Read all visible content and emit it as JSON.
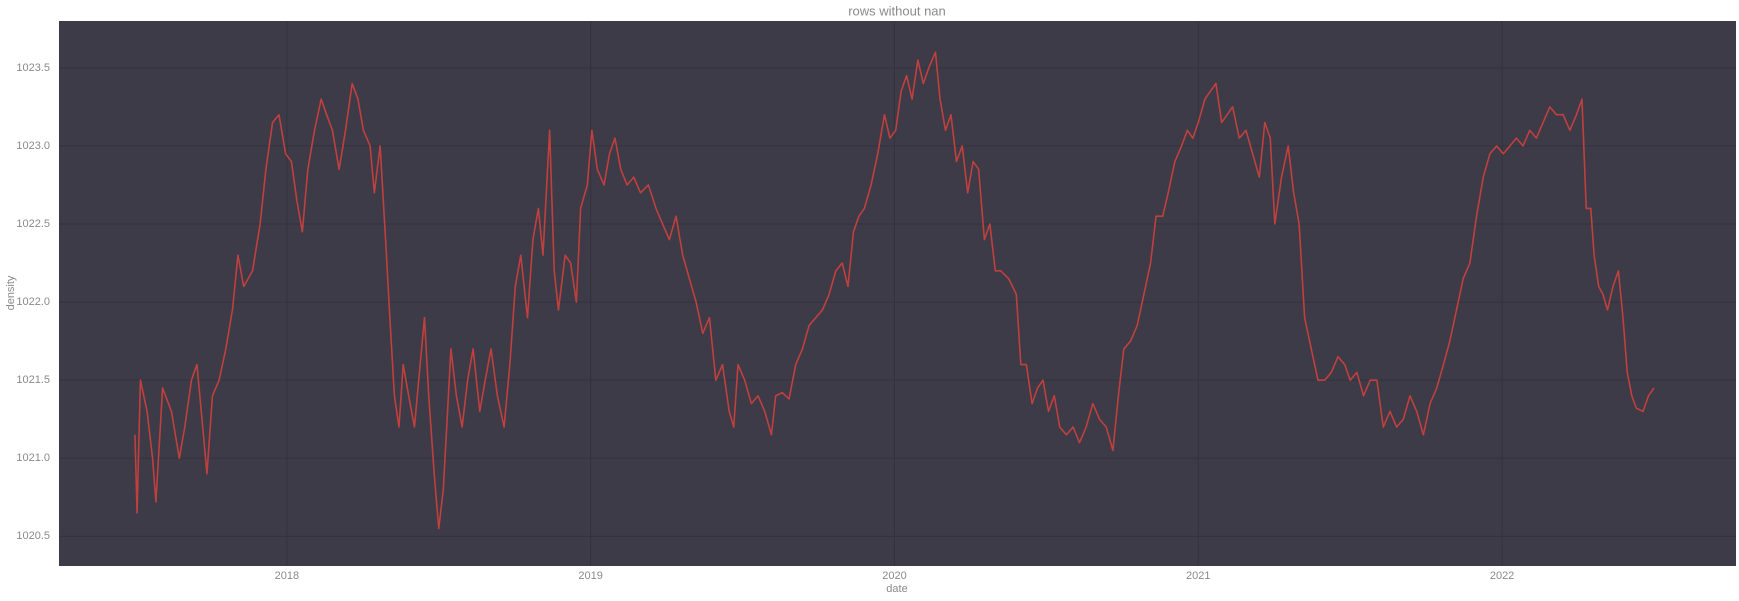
{
  "chart_data": {
    "type": "line",
    "title": "rows without nan",
    "xlabel": "date",
    "ylabel": "density",
    "xlim": [
      2017.25,
      2022.77
    ],
    "xticks": [
      2018,
      2019,
      2020,
      2021,
      2022
    ],
    "ylim": [
      1020.31,
      1023.8
    ],
    "yticks": [
      1020.5,
      {
        "value": 1021,
        "label": "1021.0"
      },
      1021.5,
      {
        "value": 1022,
        "label": "1022.0"
      },
      1022.5,
      {
        "value": 1023,
        "label": "1023.0"
      },
      1023.5
    ],
    "grid": true,
    "x": [
      2017.5,
      2017.507,
      2017.518,
      2017.54,
      2017.558,
      2017.569,
      2017.591,
      2017.62,
      2017.646,
      2017.664,
      2017.686,
      2017.704,
      2017.723,
      2017.737,
      2017.755,
      2017.777,
      2017.799,
      2017.821,
      2017.839,
      2017.858,
      2017.887,
      2017.912,
      2017.931,
      2017.953,
      2017.974,
      2017.996,
      2018.015,
      2018.033,
      2018.051,
      2018.069,
      2018.091,
      2018.113,
      2018.131,
      2018.15,
      2018.172,
      2018.193,
      2018.215,
      2018.234,
      2018.252,
      2018.274,
      2018.288,
      2018.307,
      2018.325,
      2018.339,
      2018.354,
      2018.369,
      2018.383,
      2018.401,
      2018.42,
      2018.434,
      2018.453,
      2018.467,
      2018.485,
      2018.5,
      2018.515,
      2018.529,
      2018.54,
      2018.558,
      2018.577,
      2018.595,
      2018.613,
      2018.635,
      2018.653,
      2018.672,
      2018.693,
      2018.715,
      2018.734,
      2018.752,
      2018.77,
      2018.792,
      2018.81,
      2018.828,
      2018.843,
      2018.865,
      2018.88,
      2018.894,
      2018.916,
      2018.934,
      2018.953,
      2018.967,
      2018.989,
      2019.004,
      2019.022,
      2019.044,
      2019.062,
      2019.08,
      2019.099,
      2019.12,
      2019.142,
      2019.164,
      2019.19,
      2019.215,
      2019.237,
      2019.259,
      2019.281,
      2019.303,
      2019.325,
      2019.347,
      2019.369,
      2019.391,
      2019.412,
      2019.434,
      2019.456,
      2019.471,
      2019.485,
      2019.507,
      2019.529,
      2019.551,
      2019.573,
      2019.595,
      2019.609,
      2019.631,
      2019.653,
      2019.675,
      2019.697,
      2019.719,
      2019.741,
      2019.763,
      2019.785,
      2019.807,
      2019.828,
      2019.847,
      2019.865,
      2019.883,
      2019.901,
      2019.923,
      2019.945,
      2019.967,
      2019.985,
      2020.004,
      2020.022,
      2020.04,
      2020.058,
      2020.077,
      2020.095,
      2020.113,
      2020.135,
      2020.15,
      2020.168,
      2020.186,
      2020.204,
      2020.223,
      2020.241,
      2020.259,
      2020.277,
      2020.296,
      2020.314,
      2020.332,
      2020.35,
      2020.376,
      2020.401,
      2020.416,
      2020.434,
      2020.453,
      2020.471,
      2020.489,
      2020.507,
      2020.526,
      2020.544,
      2020.566,
      2020.588,
      2020.609,
      2020.631,
      2020.653,
      2020.675,
      2020.697,
      2020.719,
      2020.737,
      2020.755,
      2020.777,
      2020.799,
      2020.821,
      2020.843,
      2020.861,
      2020.883,
      2020.901,
      2020.923,
      2020.945,
      2020.964,
      2020.982,
      2021.0,
      2021.022,
      2021.04,
      2021.058,
      2021.077,
      2021.095,
      2021.113,
      2021.135,
      2021.157,
      2021.179,
      2021.201,
      2021.219,
      2021.237,
      2021.252,
      2021.274,
      2021.296,
      2021.314,
      2021.332,
      2021.35,
      2021.372,
      2021.394,
      2021.416,
      2021.438,
      2021.46,
      2021.482,
      2021.5,
      2021.522,
      2021.544,
      2021.566,
      2021.588,
      2021.609,
      2021.631,
      2021.653,
      2021.675,
      2021.697,
      2021.719,
      2021.741,
      2021.763,
      2021.785,
      2021.807,
      2021.828,
      2021.85,
      2021.872,
      2021.894,
      2021.916,
      2021.938,
      2021.96,
      2021.982,
      2022.004,
      2022.026,
      2022.047,
      2022.069,
      2022.091,
      2022.113,
      2022.135,
      2022.157,
      2022.179,
      2022.201,
      2022.223,
      2022.245,
      2022.263,
      2022.277,
      2022.292,
      2022.303,
      2022.318,
      2022.332,
      2022.347,
      2022.365,
      2022.383,
      2022.398,
      2022.412,
      2022.427,
      2022.442,
      2022.464,
      2022.482,
      2022.5
    ],
    "series": [
      {
        "name": "density",
        "color": "#c0403e",
        "values": [
          1021.15,
          1020.65,
          1021.5,
          1021.3,
          1021.0,
          1020.72,
          1021.45,
          1021.3,
          1021.0,
          1021.2,
          1021.5,
          1021.6,
          1021.2,
          1020.9,
          1021.4,
          1021.5,
          1021.7,
          1021.95,
          1022.3,
          1022.1,
          1022.2,
          1022.5,
          1022.85,
          1023.15,
          1023.2,
          1022.95,
          1022.9,
          1022.65,
          1022.45,
          1022.85,
          1023.1,
          1023.3,
          1023.2,
          1023.1,
          1022.85,
          1023.1,
          1023.4,
          1023.3,
          1023.1,
          1023.0,
          1022.7,
          1023.0,
          1022.4,
          1021.9,
          1021.4,
          1021.2,
          1021.6,
          1021.4,
          1021.2,
          1021.5,
          1021.9,
          1021.4,
          1020.9,
          1020.55,
          1020.8,
          1021.3,
          1021.7,
          1021.4,
          1021.2,
          1021.5,
          1021.7,
          1021.3,
          1021.5,
          1021.7,
          1021.4,
          1021.2,
          1021.6,
          1022.1,
          1022.3,
          1021.9,
          1022.4,
          1022.6,
          1022.3,
          1023.1,
          1022.2,
          1021.95,
          1022.3,
          1022.25,
          1022.0,
          1022.6,
          1022.75,
          1023.1,
          1022.85,
          1022.75,
          1022.95,
          1023.05,
          1022.85,
          1022.75,
          1022.8,
          1022.7,
          1022.75,
          1022.6,
          1022.5,
          1022.4,
          1022.55,
          1022.3,
          1022.15,
          1022.0,
          1021.8,
          1021.9,
          1021.5,
          1021.6,
          1021.3,
          1021.2,
          1021.6,
          1021.5,
          1021.35,
          1021.4,
          1021.3,
          1021.15,
          1021.4,
          1021.42,
          1021.38,
          1021.6,
          1021.7,
          1021.85,
          1021.9,
          1021.95,
          1022.05,
          1022.2,
          1022.25,
          1022.1,
          1022.45,
          1022.55,
          1022.6,
          1022.75,
          1022.95,
          1023.2,
          1023.05,
          1023.1,
          1023.35,
          1023.45,
          1023.3,
          1023.55,
          1023.4,
          1023.5,
          1023.6,
          1023.3,
          1023.1,
          1023.2,
          1022.9,
          1023.0,
          1022.7,
          1022.9,
          1022.85,
          1022.4,
          1022.5,
          1022.2,
          1022.2,
          1022.15,
          1022.05,
          1021.6,
          1021.6,
          1021.35,
          1021.45,
          1021.5,
          1021.3,
          1021.4,
          1021.2,
          1021.15,
          1021.2,
          1021.1,
          1021.2,
          1021.35,
          1021.25,
          1021.2,
          1021.05,
          1021.4,
          1021.7,
          1021.75,
          1021.85,
          1022.05,
          1022.25,
          1022.55,
          1022.55,
          1022.7,
          1022.9,
          1023.0,
          1023.1,
          1023.05,
          1023.15,
          1023.3,
          1023.35,
          1023.4,
          1023.15,
          1023.2,
          1023.25,
          1023.05,
          1023.1,
          1022.95,
          1022.8,
          1023.15,
          1023.05,
          1022.5,
          1022.8,
          1023.0,
          1022.7,
          1022.5,
          1021.9,
          1021.7,
          1021.5,
          1021.5,
          1021.55,
          1021.65,
          1021.6,
          1021.5,
          1021.55,
          1021.4,
          1021.5,
          1021.5,
          1021.2,
          1021.3,
          1021.2,
          1021.25,
          1021.4,
          1021.3,
          1021.15,
          1021.35,
          1021.45,
          1021.6,
          1021.75,
          1021.95,
          1022.15,
          1022.25,
          1022.55,
          1022.8,
          1022.95,
          1023.0,
          1022.95,
          1023.0,
          1023.05,
          1023.0,
          1023.1,
          1023.05,
          1023.15,
          1023.25,
          1023.2,
          1023.2,
          1023.1,
          1023.2,
          1023.3,
          1022.6,
          1022.6,
          1022.3,
          1022.1,
          1022.05,
          1021.95,
          1022.1,
          1022.2,
          1021.9,
          1021.55,
          1021.4,
          1021.32,
          1021.3,
          1021.4,
          1021.45
        ]
      }
    ]
  }
}
